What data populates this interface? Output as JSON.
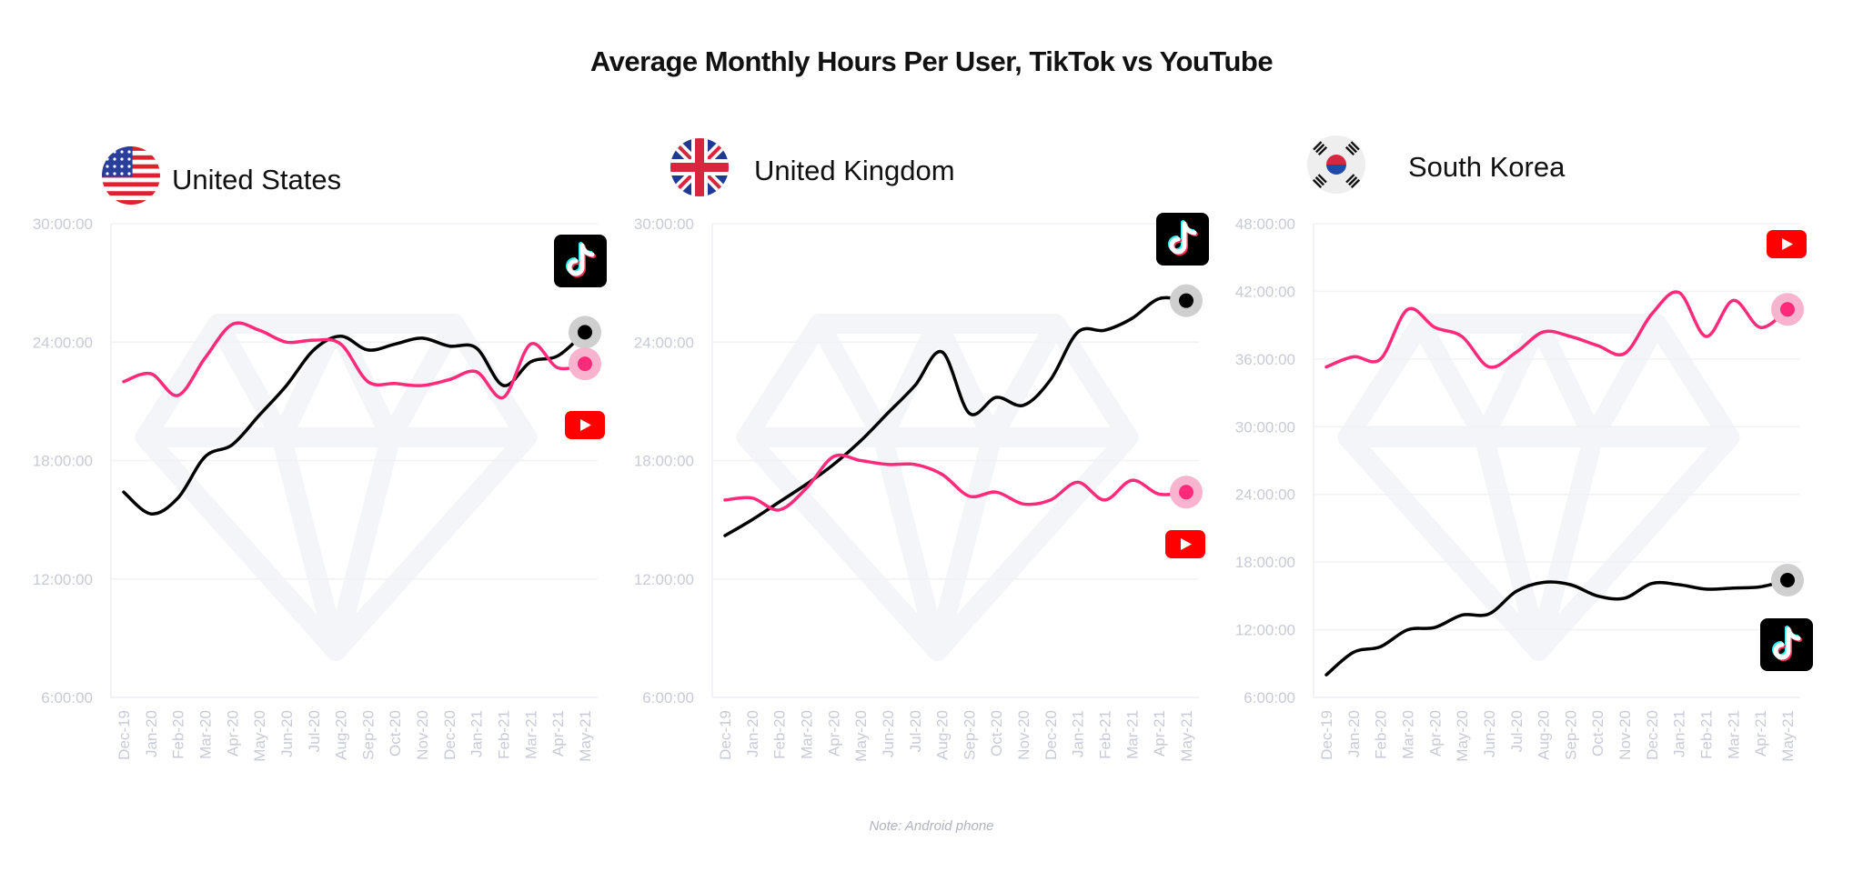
{
  "title": "Average Monthly Hours Per User, TikTok vs YouTube",
  "note": "Note: Android phone",
  "colors": {
    "tiktok": "#000000",
    "youtube": "#ff2a7a",
    "axis_text": "#c8cad6",
    "grid": "#f1f2f6",
    "watermark": "#f4f5f8"
  },
  "icons": {
    "tiktok": "tiktok-icon",
    "youtube": "youtube-icon"
  },
  "chart_data": [
    {
      "type": "line",
      "country": "United States",
      "flag": "us-flag-icon",
      "x": [
        "Dec-19",
        "Jan-20",
        "Feb-20",
        "Mar-20",
        "Apr-20",
        "May-20",
        "Jun-20",
        "Jul-20",
        "Aug-20",
        "Sep-20",
        "Oct-20",
        "Nov-20",
        "Dec-20",
        "Jan-21",
        "Feb-21",
        "Mar-21",
        "Apr-21",
        "May-21"
      ],
      "yticks": [
        "6:00:00",
        "12:00:00",
        "18:00:00",
        "24:00:00",
        "30:00:00"
      ],
      "ylim": [
        6,
        30
      ],
      "series": [
        {
          "name": "TikTok",
          "values": [
            16.4,
            15.3,
            16.1,
            18.2,
            18.8,
            20.3,
            21.8,
            23.6,
            24.3,
            23.6,
            23.9,
            24.2,
            23.8,
            23.7,
            21.8,
            23.0,
            23.3,
            24.5
          ]
        },
        {
          "name": "YouTube",
          "values": [
            22.0,
            22.4,
            21.3,
            23.2,
            24.9,
            24.6,
            24.0,
            24.1,
            23.9,
            22.0,
            21.9,
            21.8,
            22.1,
            22.5,
            21.2,
            23.9,
            22.7,
            22.9
          ]
        }
      ]
    },
    {
      "type": "line",
      "country": "United Kingdom",
      "flag": "uk-flag-icon",
      "x": [
        "Dec-19",
        "Jan-20",
        "Feb-20",
        "Mar-20",
        "Apr-20",
        "May-20",
        "Jun-20",
        "Jul-20",
        "Aug-20",
        "Sep-20",
        "Oct-20",
        "Nov-20",
        "Dec-20",
        "Jan-21",
        "Feb-21",
        "Mar-21",
        "Apr-21",
        "May-21"
      ],
      "yticks": [
        "6:00:00",
        "12:00:00",
        "18:00:00",
        "24:00:00",
        "30:00:00"
      ],
      "ylim": [
        6,
        30
      ],
      "series": [
        {
          "name": "TikTok",
          "values": [
            14.2,
            15.0,
            15.9,
            16.8,
            17.8,
            19.0,
            20.4,
            21.8,
            23.5,
            20.4,
            21.2,
            20.8,
            22.1,
            24.5,
            24.6,
            25.2,
            26.2,
            26.1
          ]
        },
        {
          "name": "YouTube",
          "values": [
            16.0,
            16.1,
            15.5,
            16.6,
            18.2,
            18.0,
            17.8,
            17.8,
            17.3,
            16.2,
            16.4,
            15.8,
            16.0,
            16.9,
            16.0,
            17.0,
            16.3,
            16.4
          ]
        }
      ]
    },
    {
      "type": "line",
      "country": "South Korea",
      "flag": "kr-flag-icon",
      "x": [
        "Dec-19",
        "Jan-20",
        "Feb-20",
        "Mar-20",
        "Apr-20",
        "May-20",
        "Jun-20",
        "Jul-20",
        "Aug-20",
        "Sep-20",
        "Oct-20",
        "Nov-20",
        "Dec-20",
        "Jan-21",
        "Feb-21",
        "Mar-21",
        "Apr-21",
        "May-21"
      ],
      "yticks": [
        "6:00:00",
        "12:00:00",
        "18:00:00",
        "24:00:00",
        "30:00:00",
        "36:00:00",
        "42:00:00",
        "48:00:00"
      ],
      "ylim": [
        6,
        48
      ],
      "series": [
        {
          "name": "TikTok",
          "values": [
            8.0,
            10.0,
            10.5,
            12.0,
            12.2,
            13.3,
            13.4,
            15.4,
            16.2,
            16.0,
            15.0,
            14.8,
            16.1,
            16.0,
            15.6,
            15.7,
            15.8,
            16.4
          ]
        },
        {
          "name": "YouTube",
          "values": [
            35.3,
            36.2,
            36.0,
            40.4,
            38.8,
            38.0,
            35.3,
            36.6,
            38.4,
            38.0,
            37.2,
            36.5,
            40.0,
            41.9,
            38.0,
            41.2,
            38.8,
            40.4
          ]
        }
      ]
    }
  ]
}
